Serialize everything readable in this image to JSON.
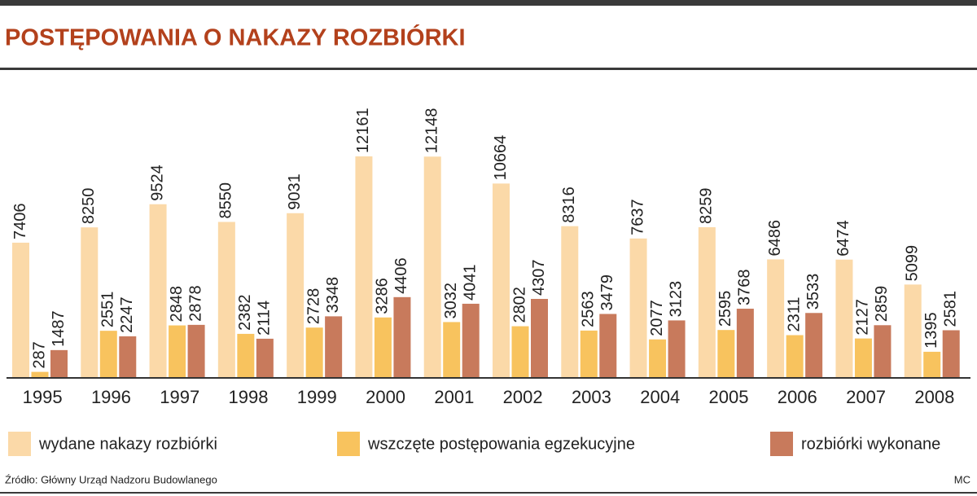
{
  "chart_data": {
    "type": "bar",
    "title": "POSTĘPOWANIA O NAKAZY ROZBIÓRKI",
    "categories": [
      "1995",
      "1996",
      "1997",
      "1998",
      "1999",
      "2000",
      "2001",
      "2002",
      "2003",
      "2004",
      "2005",
      "2006",
      "2007",
      "2008"
    ],
    "series": [
      {
        "name": "wydane nakazy rozbiórki",
        "color": "#fbd9a8",
        "values": [
          7406,
          8250,
          9524,
          8550,
          9031,
          12161,
          12148,
          10664,
          8316,
          7637,
          8259,
          6486,
          6474,
          5099
        ]
      },
      {
        "name": "wszczęte postępowania egzekucyjne",
        "color": "#f8c35e",
        "values": [
          287,
          2551,
          2848,
          2382,
          2728,
          3286,
          3032,
          2802,
          2563,
          2077,
          2595,
          2311,
          2127,
          1395
        ]
      },
      {
        "name": "rozbiórki wykonane",
        "color": "#c87a5c",
        "values": [
          1487,
          2247,
          2878,
          2114,
          3348,
          4406,
          4041,
          4307,
          3479,
          3123,
          3768,
          3533,
          2859,
          2581
        ]
      }
    ],
    "source": "Źródło: Główny Urząd Nadzoru Budowlanego",
    "credit": "MC"
  }
}
